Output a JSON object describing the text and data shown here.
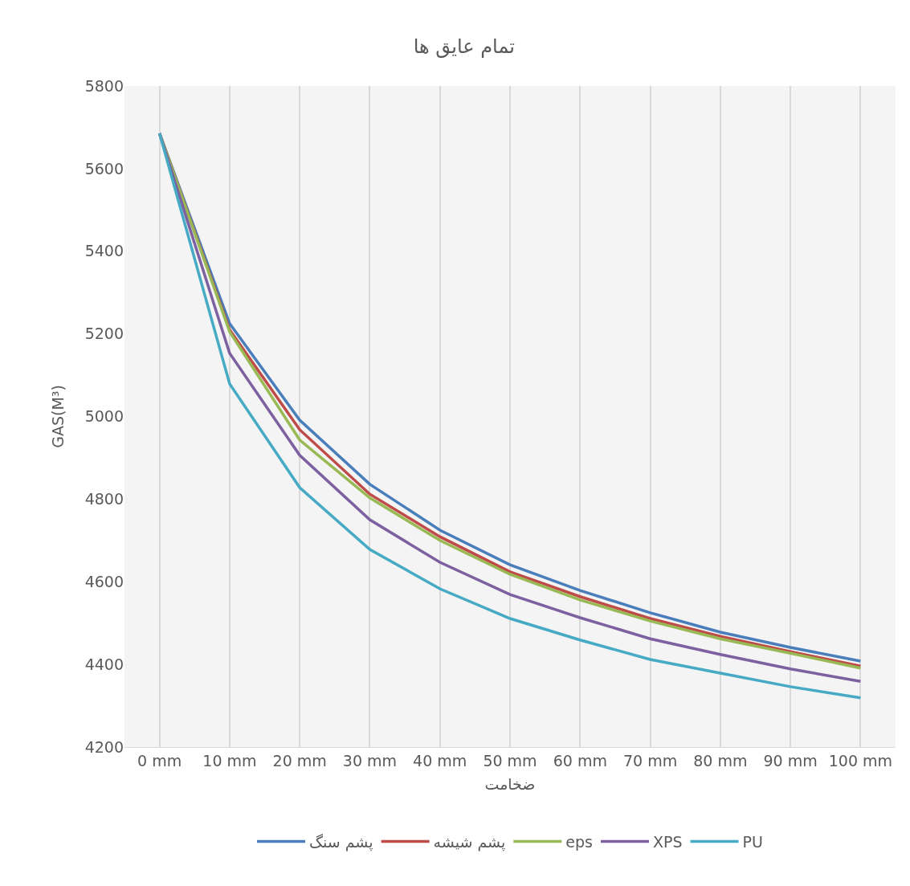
{
  "chart_data": {
    "type": "line",
    "title": "تمام عایق ها",
    "xlabel": "ضخامت",
    "ylabel": "GAS(M³)",
    "categories": [
      "0 mm",
      "10 mm",
      "20 mm",
      "30 mm",
      "40 mm",
      "50 mm",
      "60 mm",
      "70 mm",
      "80 mm",
      "90 mm",
      "100 mm"
    ],
    "series": [
      {
        "name": "پشم سنگ",
        "color": "#4a7ebb",
        "values": [
          5685,
          5225,
          4991,
          4836,
          4725,
          4641,
          4579,
          4525,
          4478,
          4441,
          4408
        ]
      },
      {
        "name": "پشم شیشه",
        "color": "#be4b48",
        "values": [
          5685,
          5210,
          4968,
          4812,
          4709,
          4624,
          4564,
          4511,
          4468,
          4431,
          4396
        ]
      },
      {
        "name": "eps",
        "color": "#98b954",
        "values": [
          5685,
          5205,
          4943,
          4803,
          4700,
          4618,
          4556,
          4505,
          4462,
          4427,
          4391
        ]
      },
      {
        "name": "XPS",
        "color": "#7d60a0",
        "values": [
          5685,
          5153,
          4906,
          4750,
          4647,
          4569,
          4513,
          4462,
          4424,
          4389,
          4359
        ]
      },
      {
        "name": "PU",
        "color": "#46aac5",
        "values": [
          5685,
          5079,
          4828,
          4678,
          4583,
          4511,
          4459,
          4412,
          4379,
          4346,
          4319
        ]
      }
    ],
    "ylim": [
      4200,
      5800
    ],
    "yticks": [
      4200,
      4400,
      4600,
      4800,
      5000,
      5200,
      5400,
      5600,
      5800
    ],
    "grid": "x",
    "legend": "bottom",
    "marker": "none",
    "line_style": "solid"
  }
}
